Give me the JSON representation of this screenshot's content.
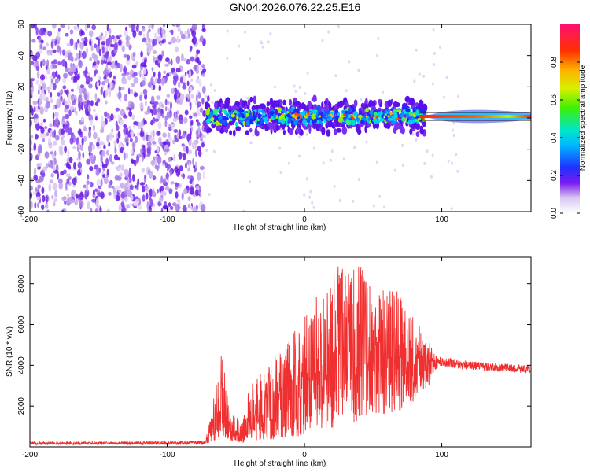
{
  "title": "GN04.2026.076.22.25.E16",
  "chart_data": [
    {
      "type": "heatmap",
      "name": "spectrogram",
      "xlabel": "Height of straight line (km)",
      "ylabel": "Frequency (Hz)",
      "xlim": [
        -200,
        165
      ],
      "ylim": [
        -60,
        60
      ],
      "xticks": [
        -200,
        -100,
        0,
        100
      ],
      "yticks": [
        -60,
        -40,
        -20,
        0,
        20,
        40,
        60
      ],
      "noise_region_x": [
        -200,
        -73
      ],
      "signal_region_x": [
        -73,
        165
      ],
      "signal_center_hz": 1,
      "colorbar": {
        "label": "Normalized spectral amplitude",
        "range": [
          0.0,
          1.0
        ],
        "ticks": [
          0.0,
          0.2,
          0.4,
          0.6,
          0.8
        ],
        "tick_labels": [
          "0.0",
          "0.2",
          "0.4",
          "0.6",
          "0.8"
        ]
      }
    },
    {
      "type": "line",
      "name": "snr",
      "xlabel": "Height of straight line (km)",
      "ylabel": "SNR (10 * v/v)",
      "xlim": [
        -200,
        165
      ],
      "ylim": [
        0,
        9300
      ],
      "xticks": [
        -200,
        -100,
        0,
        100
      ],
      "yticks": [
        2000,
        4000,
        6000,
        8000
      ],
      "series": [
        {
          "name": "SNR",
          "color": "#f03030",
          "x": [
            -200,
            -150,
            -100,
            -72,
            -60,
            -55,
            -45,
            -40,
            -30,
            -20,
            -10,
            0,
            10,
            20,
            30,
            40,
            50,
            60,
            70,
            80,
            90,
            95,
            100,
            120,
            140,
            165
          ],
          "envelope_max": [
            250,
            250,
            280,
            300,
            4800,
            1800,
            1200,
            3000,
            3800,
            4800,
            5600,
            6800,
            7500,
            8900,
            8800,
            9300,
            7600,
            8300,
            7500,
            6500,
            5400,
            4500,
            4400,
            4200,
            4100,
            4000
          ],
          "envelope_min": [
            100,
            100,
            100,
            100,
            500,
            300,
            200,
            300,
            300,
            400,
            500,
            500,
            700,
            900,
            1100,
            1300,
            1500,
            1600,
            1800,
            2200,
            2800,
            3800,
            3900,
            3800,
            3700,
            3600
          ]
        }
      ]
    }
  ]
}
